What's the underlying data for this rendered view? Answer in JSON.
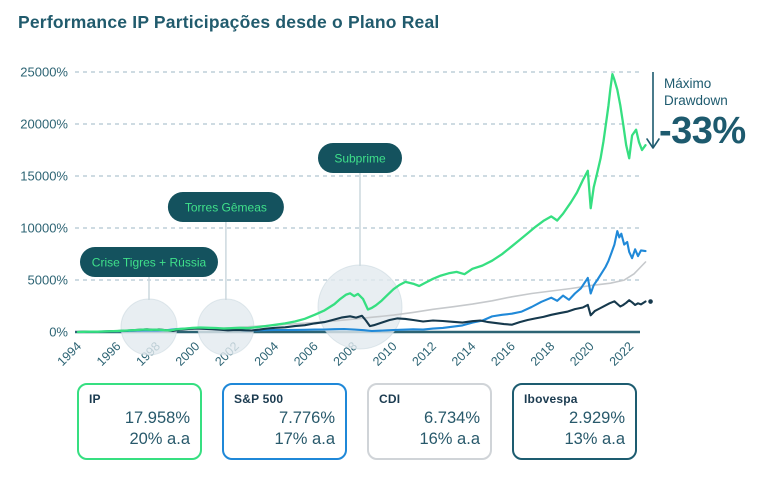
{
  "title": "Performance IP Participações desde o Plano Real",
  "annotation": {
    "line1": "Máximo",
    "line2": "Drawdown",
    "value": "-33%"
  },
  "colors": {
    "title": "#215b6d",
    "axis": "#2d6474",
    "grid": "#b0c5d0",
    "pill_bg": "#14525e",
    "pill_text": "#3fe08a",
    "connector": "#ccd8de",
    "event_circle": "rgba(226,234,239,0.8)",
    "annotation": "#1d5a6e"
  },
  "events": [
    {
      "label": "Crise Tigres + Rússia",
      "year": 1997.6
    },
    {
      "label": "Torres Gêmeas",
      "year": 2001.5
    },
    {
      "label": "Subprime",
      "year": 2008.3
    }
  ],
  "legend": {
    "items": [
      {
        "name": "IP",
        "total": "17.958%",
        "annual": "20% a.a",
        "color": "#36df81"
      },
      {
        "name": "S&P 500",
        "total": "7.776%",
        "annual": "17% a.a",
        "color": "#1f88d8"
      },
      {
        "name": "CDI",
        "total": "6.734%",
        "annual": "16% a.a",
        "color": "#d0d4d8"
      },
      {
        "name": "Ibovespa",
        "total": "2.929%",
        "annual": "13% a.a",
        "color": "#1d5c70"
      }
    ]
  },
  "chart_data": {
    "type": "line",
    "title": "Performance IP Participações desde o Plano Real",
    "xlabel": "",
    "ylabel": "",
    "xlim": [
      1994,
      2023
    ],
    "ylim": [
      0,
      25000
    ],
    "grid": "dashed horizontal",
    "legend_position": "bottom boxes",
    "x_ticks": [
      1994,
      1996,
      1998,
      2000,
      2002,
      2004,
      2006,
      2008,
      2010,
      2012,
      2014,
      2016,
      2018,
      2020,
      2022
    ],
    "y_ticks": [
      {
        "value": 0,
        "label": "0%"
      },
      {
        "value": 5000,
        "label": "5000%"
      },
      {
        "value": 10000,
        "label": "10000%"
      },
      {
        "value": 15000,
        "label": "15000%"
      },
      {
        "value": 20000,
        "label": "20000%"
      },
      {
        "value": 25000,
        "label": "25000%"
      }
    ],
    "series": [
      {
        "name": "CDI",
        "color": "#c6c9cc",
        "width": 1.6,
        "end_dot": false,
        "points": [
          [
            1994,
            0
          ],
          [
            1995,
            30
          ],
          [
            1996,
            65
          ],
          [
            1997,
            105
          ],
          [
            1998,
            152
          ],
          [
            1999,
            212
          ],
          [
            2000,
            278
          ],
          [
            2001,
            348
          ],
          [
            2002,
            428
          ],
          [
            2003,
            548
          ],
          [
            2004,
            658
          ],
          [
            2005,
            785
          ],
          [
            2006,
            918
          ],
          [
            2007,
            1068
          ],
          [
            2008,
            1245
          ],
          [
            2009,
            1432
          ],
          [
            2010,
            1628
          ],
          [
            2011,
            1885
          ],
          [
            2012,
            2180
          ],
          [
            2013,
            2420
          ],
          [
            2014,
            2680
          ],
          [
            2015,
            3000
          ],
          [
            2016,
            3380
          ],
          [
            2017,
            3700
          ],
          [
            2018,
            3940
          ],
          [
            2019,
            4180
          ],
          [
            2020,
            4460
          ],
          [
            2021,
            4695
          ],
          [
            2021.7,
            4995
          ],
          [
            2022.2,
            5600
          ],
          [
            2022.78,
            6734
          ]
        ]
      },
      {
        "name": "S&P 500",
        "color": "#2089d8",
        "width": 2.1,
        "end_dot": false,
        "points": [
          [
            1994,
            0
          ],
          [
            1994.5,
            12
          ],
          [
            1995,
            38
          ],
          [
            1995.5,
            62
          ],
          [
            1996,
            88
          ],
          [
            1996.5,
            105
          ],
          [
            1997,
            135
          ],
          [
            1997.5,
            165
          ],
          [
            1998,
            145
          ],
          [
            1998.5,
            175
          ],
          [
            1999,
            290
          ],
          [
            1999.5,
            340
          ],
          [
            2000,
            370
          ],
          [
            2000.5,
            330
          ],
          [
            2001,
            300
          ],
          [
            2001.5,
            265
          ],
          [
            2002,
            235
          ],
          [
            2002.5,
            165
          ],
          [
            2002.8,
            145
          ],
          [
            2003.2,
            165
          ],
          [
            2003.6,
            185
          ],
          [
            2004,
            195
          ],
          [
            2004.5,
            190
          ],
          [
            2005,
            205
          ],
          [
            2005.5,
            215
          ],
          [
            2006,
            230
          ],
          [
            2006.5,
            245
          ],
          [
            2007,
            270
          ],
          [
            2007.5,
            290
          ],
          [
            2008,
            240
          ],
          [
            2008.5,
            170
          ],
          [
            2008.9,
            95
          ],
          [
            2009.3,
            125
          ],
          [
            2009.7,
            165
          ],
          [
            2010,
            195
          ],
          [
            2010.5,
            225
          ],
          [
            2011,
            255
          ],
          [
            2011.5,
            235
          ],
          [
            2012,
            330
          ],
          [
            2012.5,
            390
          ],
          [
            2013,
            510
          ],
          [
            2013.5,
            630
          ],
          [
            2014,
            900
          ],
          [
            2014.5,
            1100
          ],
          [
            2015,
            1500
          ],
          [
            2015.5,
            1650
          ],
          [
            2016,
            1760
          ],
          [
            2016.5,
            1960
          ],
          [
            2017,
            2400
          ],
          [
            2017.5,
            2900
          ],
          [
            2018,
            3300
          ],
          [
            2018.3,
            3000
          ],
          [
            2018.6,
            3500
          ],
          [
            2018.9,
            3100
          ],
          [
            2019.2,
            3700
          ],
          [
            2019.5,
            4200
          ],
          [
            2019.85,
            5200
          ],
          [
            2020.0,
            3700
          ],
          [
            2020.15,
            4500
          ],
          [
            2020.35,
            5050
          ],
          [
            2020.55,
            5650
          ],
          [
            2020.75,
            6250
          ],
          [
            2020.9,
            6850
          ],
          [
            2021.05,
            7600
          ],
          [
            2021.2,
            8400
          ],
          [
            2021.35,
            9700
          ],
          [
            2021.45,
            9100
          ],
          [
            2021.55,
            9450
          ],
          [
            2021.7,
            8400
          ],
          [
            2021.85,
            8650
          ],
          [
            2021.95,
            7700
          ],
          [
            2022.1,
            7100
          ],
          [
            2022.25,
            7950
          ],
          [
            2022.4,
            7300
          ],
          [
            2022.55,
            7850
          ],
          [
            2022.78,
            7776
          ]
        ]
      },
      {
        "name": "Ibovespa",
        "color": "#16394d",
        "width": 2.1,
        "end_dot": true,
        "points": [
          [
            1994,
            0
          ],
          [
            1994.4,
            42
          ],
          [
            1994.8,
            22
          ],
          [
            1995.2,
            48
          ],
          [
            1995.6,
            72
          ],
          [
            1996,
            98
          ],
          [
            1996.5,
            135
          ],
          [
            1997,
            205
          ],
          [
            1997.5,
            262
          ],
          [
            1997.8,
            215
          ],
          [
            1998.1,
            252
          ],
          [
            1998.5,
            165
          ],
          [
            1998.8,
            92
          ],
          [
            1999.2,
            235
          ],
          [
            1999.6,
            295
          ],
          [
            2000,
            345
          ],
          [
            2000.4,
            305
          ],
          [
            2000.8,
            265
          ],
          [
            2001.2,
            225
          ],
          [
            2001.6,
            165
          ],
          [
            2002,
            205
          ],
          [
            2002.4,
            175
          ],
          [
            2002.8,
            145
          ],
          [
            2003.2,
            235
          ],
          [
            2003.6,
            335
          ],
          [
            2004,
            405
          ],
          [
            2004.5,
            455
          ],
          [
            2005,
            565
          ],
          [
            2005.5,
            655
          ],
          [
            2006,
            825
          ],
          [
            2006.5,
            955
          ],
          [
            2007,
            1205
          ],
          [
            2007.4,
            1405
          ],
          [
            2007.8,
            1505
          ],
          [
            2008.1,
            1385
          ],
          [
            2008.4,
            1555
          ],
          [
            2008.6,
            1105
          ],
          [
            2008.8,
            565
          ],
          [
            2009,
            655
          ],
          [
            2009.4,
            905
          ],
          [
            2009.8,
            1155
          ],
          [
            2010.2,
            1305
          ],
          [
            2010.6,
            1255
          ],
          [
            2011,
            1155
          ],
          [
            2011.5,
            1005
          ],
          [
            2012,
            1105
          ],
          [
            2012.5,
            1055
          ],
          [
            2013,
            985
          ],
          [
            2013.5,
            905
          ],
          [
            2014,
            1035
          ],
          [
            2014.4,
            1105
          ],
          [
            2014.8,
            955
          ],
          [
            2015.2,
            855
          ],
          [
            2015.6,
            755
          ],
          [
            2016,
            705
          ],
          [
            2016.4,
            955
          ],
          [
            2016.8,
            1155
          ],
          [
            2017.2,
            1305
          ],
          [
            2017.6,
            1455
          ],
          [
            2018,
            1655
          ],
          [
            2018.4,
            1805
          ],
          [
            2018.8,
            1955
          ],
          [
            2019.2,
            2205
          ],
          [
            2019.6,
            2355
          ],
          [
            2019.85,
            2605
          ],
          [
            2020.0,
            1605
          ],
          [
            2020.2,
            2005
          ],
          [
            2020.45,
            2255
          ],
          [
            2020.7,
            2505
          ],
          [
            2020.95,
            2755
          ],
          [
            2021.2,
            2955
          ],
          [
            2021.35,
            2705
          ],
          [
            2021.5,
            2455
          ],
          [
            2021.65,
            2605
          ],
          [
            2021.8,
            2805
          ],
          [
            2021.95,
            3055
          ],
          [
            2022.1,
            2855
          ],
          [
            2022.25,
            2605
          ],
          [
            2022.4,
            2755
          ],
          [
            2022.55,
            2655
          ],
          [
            2022.78,
            2929
          ]
        ]
      },
      {
        "name": "IP",
        "color": "#36df81",
        "width": 2.3,
        "end_dot": false,
        "points": [
          [
            1994,
            0
          ],
          [
            1994.3,
            15
          ],
          [
            1994.6,
            40
          ],
          [
            1995,
            25
          ],
          [
            1995.4,
            55
          ],
          [
            1995.8,
            85
          ],
          [
            1996.2,
            115
          ],
          [
            1996.6,
            150
          ],
          [
            1997,
            195
          ],
          [
            1997.4,
            240
          ],
          [
            1997.7,
            210
          ],
          [
            1998,
            235
          ],
          [
            1998.4,
            175
          ],
          [
            1998.7,
            150
          ],
          [
            1999,
            260
          ],
          [
            1999.4,
            330
          ],
          [
            1999.8,
            395
          ],
          [
            2000.2,
            430
          ],
          [
            2000.6,
            400
          ],
          [
            2001,
            380
          ],
          [
            2001.4,
            340
          ],
          [
            2001.8,
            375
          ],
          [
            2002.2,
            405
          ],
          [
            2002.6,
            365
          ],
          [
            2003,
            455
          ],
          [
            2003.5,
            570
          ],
          [
            2004,
            690
          ],
          [
            2004.5,
            830
          ],
          [
            2005,
            1010
          ],
          [
            2005.5,
            1270
          ],
          [
            2006,
            1650
          ],
          [
            2006.5,
            2080
          ],
          [
            2007,
            2680
          ],
          [
            2007.3,
            3180
          ],
          [
            2007.6,
            3600
          ],
          [
            2007.8,
            3720
          ],
          [
            2008,
            3450
          ],
          [
            2008.2,
            3660
          ],
          [
            2008.45,
            3180
          ],
          [
            2008.7,
            2160
          ],
          [
            2008.9,
            2320
          ],
          [
            2009.1,
            2560
          ],
          [
            2009.4,
            3020
          ],
          [
            2009.7,
            3580
          ],
          [
            2010,
            4120
          ],
          [
            2010.3,
            4520
          ],
          [
            2010.6,
            4820
          ],
          [
            2011,
            4640
          ],
          [
            2011.3,
            4420
          ],
          [
            2011.6,
            4720
          ],
          [
            2012,
            5120
          ],
          [
            2012.4,
            5420
          ],
          [
            2012.8,
            5640
          ],
          [
            2013.2,
            5780
          ],
          [
            2013.6,
            5560
          ],
          [
            2014,
            6080
          ],
          [
            2014.5,
            6380
          ],
          [
            2015,
            6860
          ],
          [
            2015.5,
            7480
          ],
          [
            2016,
            8240
          ],
          [
            2016.4,
            8860
          ],
          [
            2016.8,
            9480
          ],
          [
            2017.2,
            10120
          ],
          [
            2017.6,
            10680
          ],
          [
            2018,
            11120
          ],
          [
            2018.3,
            10720
          ],
          [
            2018.6,
            11380
          ],
          [
            2019,
            12480
          ],
          [
            2019.3,
            13400
          ],
          [
            2019.6,
            14600
          ],
          [
            2019.85,
            15500
          ],
          [
            2020.0,
            11900
          ],
          [
            2020.15,
            13900
          ],
          [
            2020.3,
            15050
          ],
          [
            2020.5,
            16700
          ],
          [
            2020.65,
            18350
          ],
          [
            2020.8,
            20400
          ],
          [
            2020.9,
            21800
          ],
          [
            2021.0,
            23400
          ],
          [
            2021.1,
            24800
          ],
          [
            2021.2,
            24250
          ],
          [
            2021.35,
            23300
          ],
          [
            2021.5,
            21800
          ],
          [
            2021.65,
            19900
          ],
          [
            2021.8,
            17950
          ],
          [
            2021.95,
            16700
          ],
          [
            2022.1,
            18900
          ],
          [
            2022.3,
            19450
          ],
          [
            2022.45,
            18250
          ],
          [
            2022.6,
            17500
          ],
          [
            2022.78,
            17958
          ]
        ]
      }
    ]
  }
}
